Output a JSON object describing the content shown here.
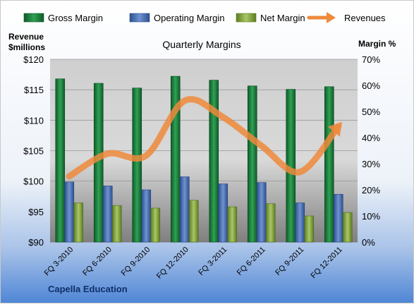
{
  "chart_data": {
    "type": "bar",
    "title": "Quarterly Margins",
    "company": "Capella Education",
    "categories": [
      "FQ 3-2010",
      "FQ 6-2010",
      "FQ 9-2010",
      "FQ 12-2010",
      "FQ 3-2011",
      "FQ 6-2011",
      "FQ 9-2011",
      "FQ 12-2011"
    ],
    "left_axis": {
      "label_line1": "Revenue",
      "label_line2": "$millions",
      "min": 90,
      "max": 120,
      "step": 5,
      "ticks": [
        "$90",
        "$95",
        "$100",
        "$105",
        "$110",
        "$115",
        "$120"
      ]
    },
    "right_axis": {
      "label": "Margin %",
      "min": 0,
      "max": 70,
      "step": 10,
      "ticks": [
        "0%",
        "10%",
        "20%",
        "30%",
        "40%",
        "50%",
        "60%",
        "70%"
      ]
    },
    "series": [
      {
        "name": "Gross Margin",
        "type": "bar",
        "axis": "right",
        "color": "#1e7f3e",
        "values": [
          62.5,
          60.8,
          59.0,
          63.5,
          62.0,
          59.8,
          58.5,
          59.5
        ]
      },
      {
        "name": "Operating Margin",
        "type": "bar",
        "axis": "right",
        "color": "#4a6fb0",
        "values": [
          23.0,
          21.5,
          20.0,
          25.0,
          22.3,
          22.8,
          15.0,
          18.3
        ]
      },
      {
        "name": "Net Margin",
        "type": "bar",
        "axis": "right",
        "color": "#8fb046",
        "values": [
          15.0,
          14.0,
          13.0,
          16.0,
          13.5,
          14.7,
          10.0,
          11.3
        ]
      },
      {
        "name": "Revenues",
        "type": "line",
        "axis": "left",
        "color": "#ee8a3c",
        "values": [
          100.8,
          104.5,
          104.2,
          113.2,
          110.5,
          105.8,
          101.5,
          109.0
        ]
      }
    ],
    "legend_position": "top",
    "grid": true
  }
}
